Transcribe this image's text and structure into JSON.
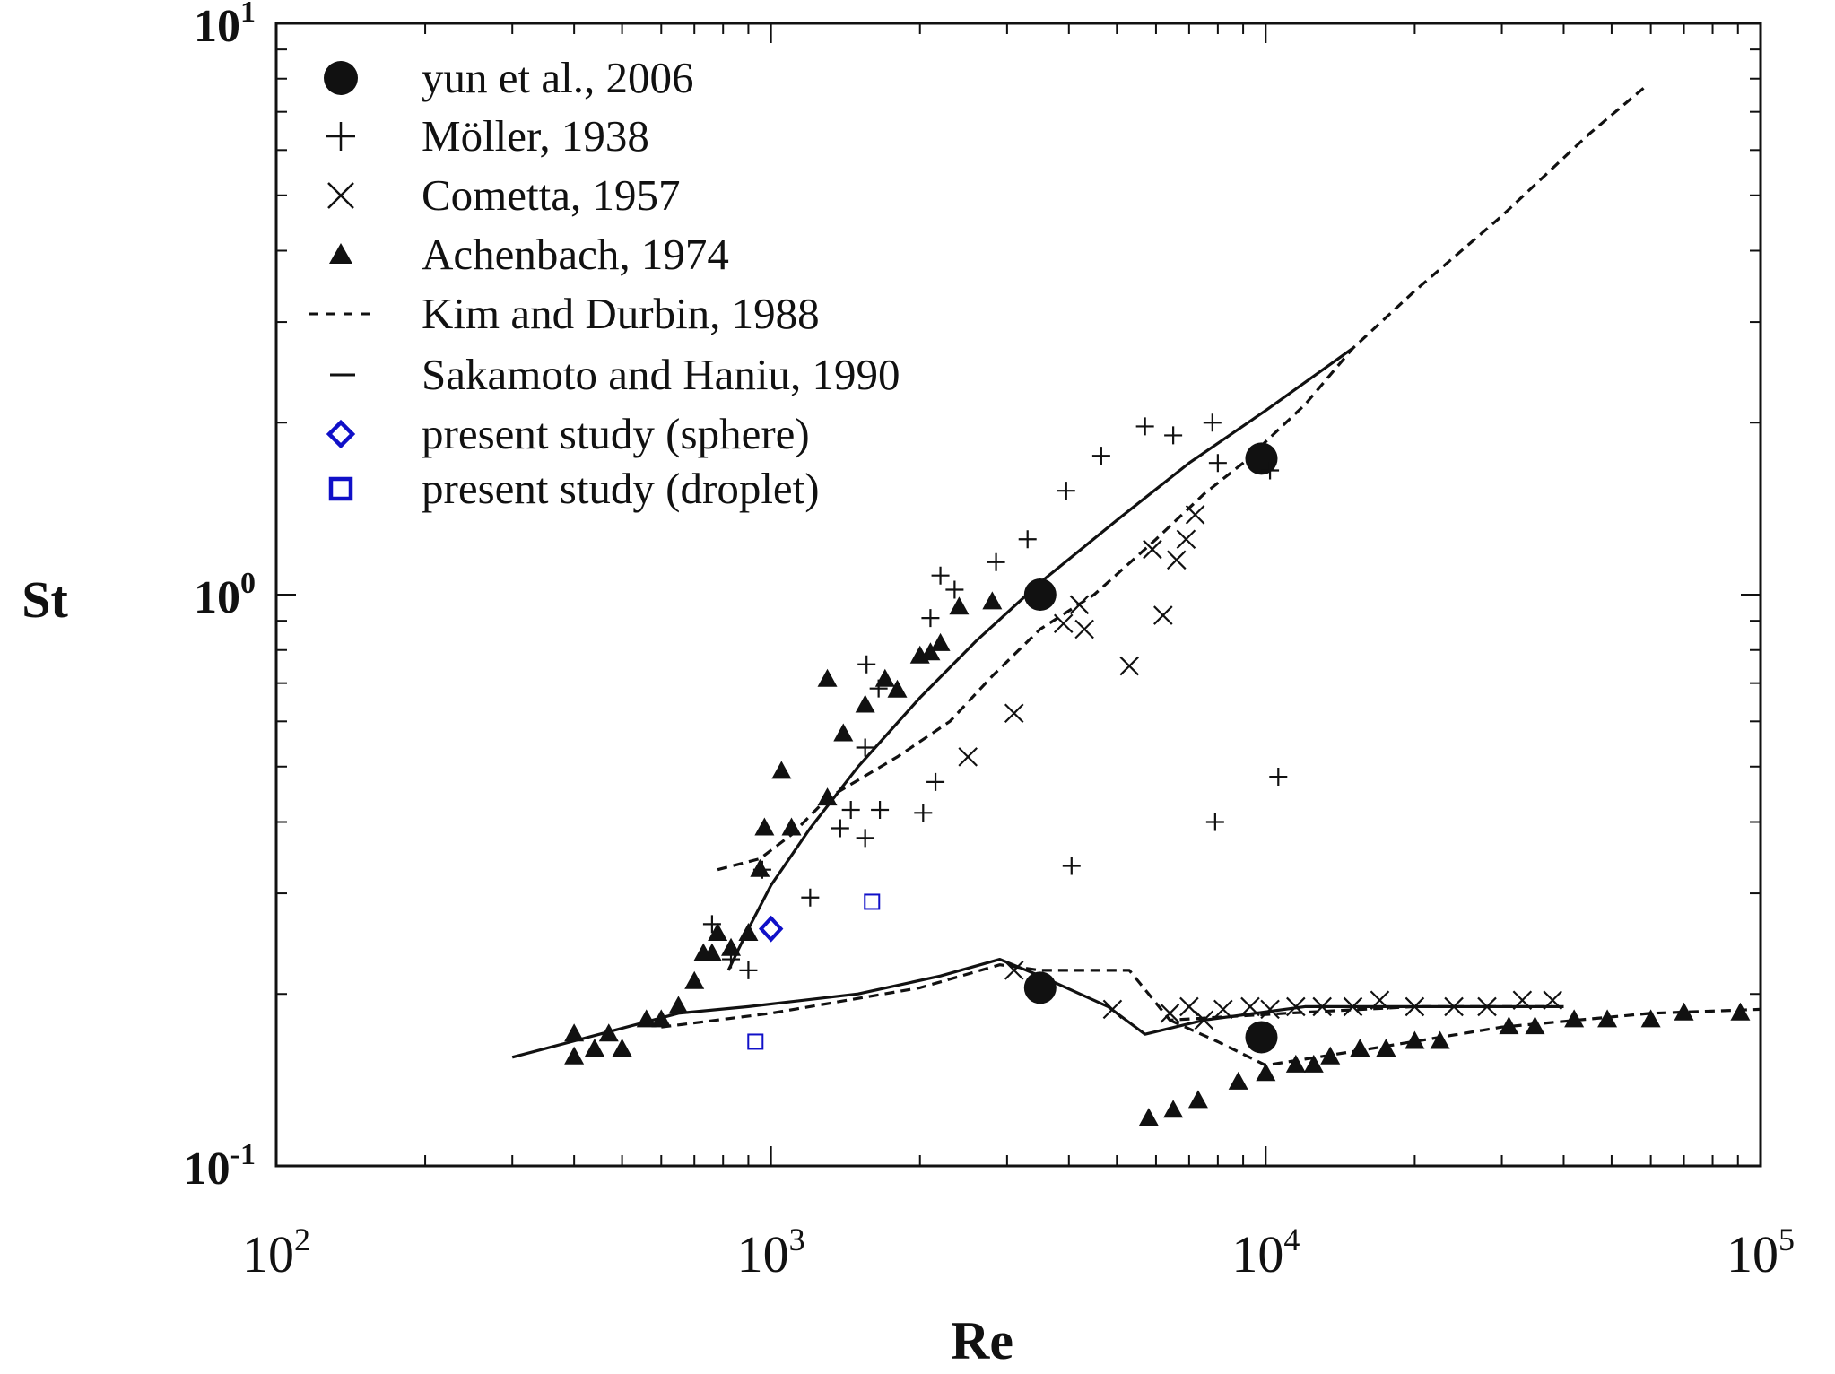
{
  "chart_data": {
    "type": "scatter",
    "xscale": "log",
    "yscale": "log",
    "xlim": [
      100,
      100000
    ],
    "ylim": [
      0.1,
      10
    ],
    "xlabel": "Re",
    "ylabel": "St",
    "xticks": [
      {
        "value": 100,
        "base": "10",
        "exp": "2"
      },
      {
        "value": 1000,
        "base": "10",
        "exp": "3"
      },
      {
        "value": 10000,
        "base": "10",
        "exp": "4"
      },
      {
        "value": 100000,
        "base": "10",
        "exp": "5"
      }
    ],
    "yticks": [
      {
        "value": 0.1,
        "base": "10",
        "exp": "-1"
      },
      {
        "value": 1,
        "base": "10",
        "exp": "0"
      },
      {
        "value": 10,
        "base": "10",
        "exp": "1"
      }
    ],
    "legend_position": "top-left",
    "series": [
      {
        "name": "yun et al., 2006",
        "marker": "circle-filled",
        "color": "#111111",
        "points": [
          [
            3500,
            1.0
          ],
          [
            3500,
            0.205
          ],
          [
            9800,
            1.73
          ],
          [
            9800,
            0.168
          ]
        ]
      },
      {
        "name": "Möller, 1938",
        "marker": "plus",
        "color": "#111111",
        "points": [
          [
            760,
            0.265
          ],
          [
            830,
            0.23
          ],
          [
            900,
            0.22
          ],
          [
            960,
            0.33
          ],
          [
            1200,
            0.295
          ],
          [
            1380,
            0.39
          ],
          [
            1450,
            0.42
          ],
          [
            1550,
            0.375
          ],
          [
            1550,
            0.54
          ],
          [
            1560,
            0.755
          ],
          [
            1650,
            0.685
          ],
          [
            1660,
            0.42
          ],
          [
            2030,
            0.415
          ],
          [
            2150,
            0.47
          ],
          [
            2100,
            0.91
          ],
          [
            2200,
            1.08
          ],
          [
            2350,
            1.02
          ],
          [
            2850,
            1.14
          ],
          [
            3300,
            1.25
          ],
          [
            3950,
            1.52
          ],
          [
            4650,
            1.75
          ],
          [
            5700,
            1.97
          ],
          [
            6500,
            1.9
          ],
          [
            7800,
            2.0
          ],
          [
            8000,
            1.7
          ],
          [
            10200,
            1.65
          ],
          [
            7900,
            0.4
          ],
          [
            10600,
            0.48
          ],
          [
            4050,
            0.335
          ]
        ]
      },
      {
        "name": "Cometta, 1957",
        "marker": "cross",
        "color": "#111111",
        "points": [
          [
            2500,
            0.52
          ],
          [
            3100,
            0.62
          ],
          [
            3900,
            0.89
          ],
          [
            4200,
            0.96
          ],
          [
            4300,
            0.87
          ],
          [
            5300,
            0.75
          ],
          [
            5900,
            1.2
          ],
          [
            6200,
            0.92
          ],
          [
            6600,
            1.15
          ],
          [
            6900,
            1.25
          ],
          [
            7200,
            1.38
          ],
          [
            3100,
            0.22
          ],
          [
            4900,
            0.188
          ],
          [
            6400,
            0.185
          ],
          [
            7000,
            0.19
          ],
          [
            7500,
            0.18
          ],
          [
            8200,
            0.188
          ],
          [
            9300,
            0.19
          ],
          [
            10200,
            0.188
          ],
          [
            11500,
            0.19
          ],
          [
            13000,
            0.19
          ],
          [
            15000,
            0.19
          ],
          [
            17000,
            0.195
          ],
          [
            20000,
            0.19
          ],
          [
            24000,
            0.19
          ],
          [
            28000,
            0.19
          ],
          [
            33000,
            0.195
          ],
          [
            38000,
            0.195
          ]
        ]
      },
      {
        "name": "Achenbach, 1974",
        "marker": "triangle-filled",
        "color": "#111111",
        "points": [
          [
            400,
            0.17
          ],
          [
            400,
            0.155
          ],
          [
            440,
            0.16
          ],
          [
            470,
            0.17
          ],
          [
            500,
            0.16
          ],
          [
            560,
            0.18
          ],
          [
            600,
            0.18
          ],
          [
            650,
            0.19
          ],
          [
            700,
            0.21
          ],
          [
            730,
            0.235
          ],
          [
            760,
            0.235
          ],
          [
            780,
            0.255
          ],
          [
            830,
            0.24
          ],
          [
            900,
            0.255
          ],
          [
            950,
            0.33
          ],
          [
            970,
            0.39
          ],
          [
            1050,
            0.49
          ],
          [
            1100,
            0.39
          ],
          [
            1300,
            0.44
          ],
          [
            1300,
            0.71
          ],
          [
            1400,
            0.57
          ],
          [
            1550,
            0.64
          ],
          [
            1700,
            0.71
          ],
          [
            1800,
            0.68
          ],
          [
            2000,
            0.78
          ],
          [
            2100,
            0.79
          ],
          [
            2200,
            0.82
          ],
          [
            2400,
            0.95
          ],
          [
            2800,
            0.97
          ],
          [
            5800,
            0.121
          ],
          [
            6500,
            0.125
          ],
          [
            7300,
            0.13
          ],
          [
            8800,
            0.14
          ],
          [
            10000,
            0.145
          ],
          [
            11500,
            0.15
          ],
          [
            12500,
            0.15
          ],
          [
            13500,
            0.155
          ],
          [
            15500,
            0.16
          ],
          [
            17500,
            0.16
          ],
          [
            20000,
            0.165
          ],
          [
            22500,
            0.165
          ],
          [
            31000,
            0.175
          ],
          [
            35000,
            0.175
          ],
          [
            42000,
            0.18
          ],
          [
            49000,
            0.18
          ],
          [
            60000,
            0.18
          ],
          [
            70000,
            0.185
          ],
          [
            91000,
            0.185
          ]
        ]
      },
      {
        "name": "Kim and Durbin, 1988",
        "marker": "line-dashed",
        "color": "#111111",
        "lines": [
          [
            [
              600,
              0.175
            ],
            [
              1000,
              0.185
            ],
            [
              2000,
              0.205
            ],
            [
              2900,
              0.225
            ],
            [
              3500,
              0.22
            ],
            [
              5300,
              0.22
            ],
            [
              6400,
              0.18
            ],
            [
              11000,
              0.185
            ],
            [
              20000,
              0.19
            ],
            [
              38000,
              0.19
            ]
          ],
          [
            [
              6400,
              0.18
            ],
            [
              8000,
              0.165
            ],
            [
              10000,
              0.15
            ],
            [
              16000,
              0.16
            ],
            [
              30000,
              0.175
            ],
            [
              60000,
              0.185
            ],
            [
              100000,
              0.188
            ]
          ],
          [
            [
              780,
              0.33
            ],
            [
              950,
              0.345
            ],
            [
              1100,
              0.38
            ],
            [
              1300,
              0.44
            ],
            [
              1800,
              0.52
            ],
            [
              2300,
              0.6
            ],
            [
              2800,
              0.72
            ],
            [
              3500,
              0.87
            ],
            [
              4500,
              1.0
            ],
            [
              6000,
              1.25
            ],
            [
              7500,
              1.5
            ],
            [
              9000,
              1.7
            ],
            [
              12000,
              2.15
            ],
            [
              15000,
              2.7
            ],
            [
              20000,
              3.4
            ],
            [
              30000,
              4.6
            ],
            [
              45000,
              6.4
            ],
            [
              58000,
              7.7
            ]
          ]
        ]
      },
      {
        "name": "Sakamoto and Haniu, 1990",
        "marker": "line-solid",
        "color": "#111111",
        "lines": [
          [
            [
              300,
              0.155
            ],
            [
              450,
              0.17
            ],
            [
              650,
              0.185
            ],
            [
              900,
              0.19
            ],
            [
              1500,
              0.2
            ],
            [
              2200,
              0.215
            ],
            [
              2900,
              0.23
            ],
            [
              3500,
              0.215
            ],
            [
              4800,
              0.19
            ],
            [
              5700,
              0.17
            ],
            [
              7500,
              0.18
            ],
            [
              12000,
              0.19
            ],
            [
              20000,
              0.19
            ],
            [
              40000,
              0.19
            ]
          ],
          [
            [
              820,
              0.22
            ],
            [
              900,
              0.26
            ],
            [
              1000,
              0.31
            ],
            [
              1200,
              0.39
            ],
            [
              1500,
              0.5
            ],
            [
              2000,
              0.66
            ],
            [
              2600,
              0.83
            ],
            [
              3500,
              1.05
            ],
            [
              5000,
              1.35
            ],
            [
              7000,
              1.7
            ],
            [
              10000,
              2.1
            ],
            [
              15000,
              2.7
            ]
          ]
        ]
      },
      {
        "name": "present study (sphere)",
        "marker": "diamond-open",
        "color": "#1010c8",
        "points": [
          [
            1000,
            0.26
          ]
        ]
      },
      {
        "name": "present study (droplet)",
        "marker": "square-open",
        "color": "#1010c8",
        "points": [
          [
            1600,
            0.29
          ],
          [
            930,
            0.165
          ]
        ]
      }
    ]
  }
}
